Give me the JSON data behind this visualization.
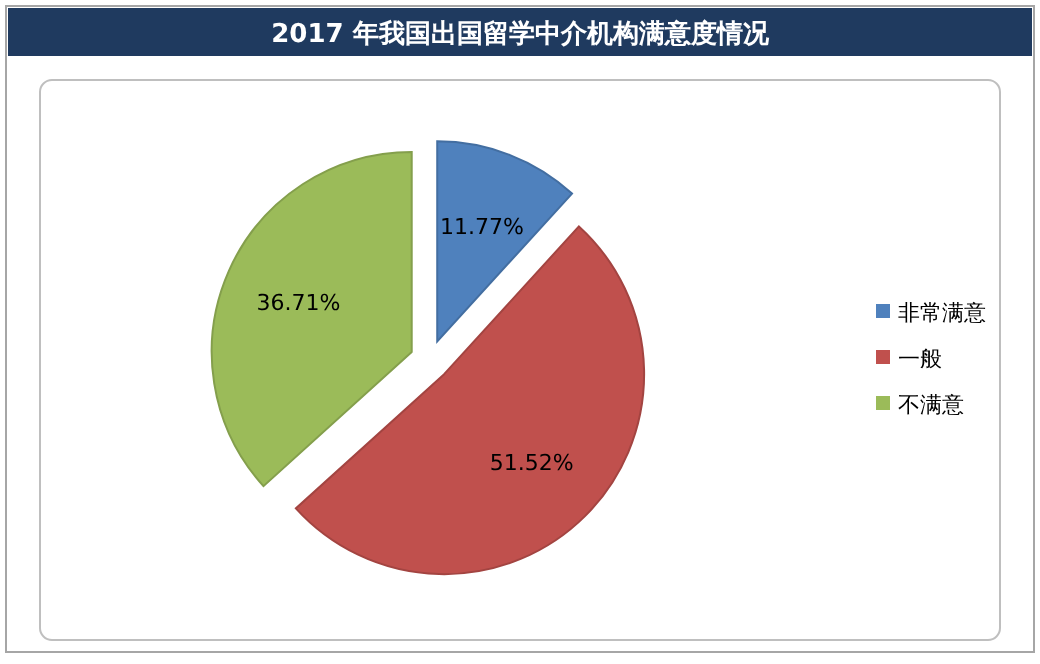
{
  "chart_data": {
    "type": "pie",
    "title": "2017 年我国出国留学中介机构满意度情况",
    "categories": [
      "非常满意",
      "一般",
      "不满意"
    ],
    "values": [
      11.77,
      51.52,
      36.71
    ],
    "colors": [
      "#4f81bd",
      "#c0504d",
      "#9bbb59"
    ],
    "value_labels": [
      "11.77%",
      "51.52%",
      "36.71%"
    ],
    "legend": "right"
  }
}
